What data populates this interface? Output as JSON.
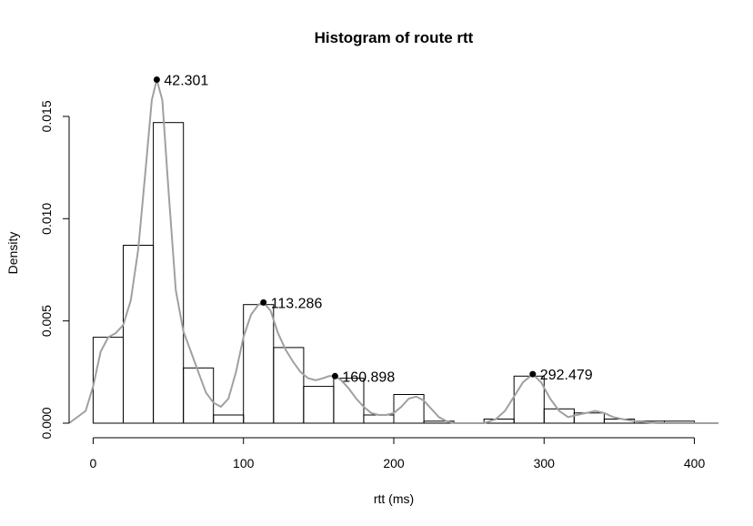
{
  "chart_data": {
    "type": "histogram",
    "title": "Histogram of route  rtt",
    "xlabel": "rtt  (ms)",
    "ylabel": "Density",
    "xlim": [
      -16,
      416
    ],
    "ylim": [
      0,
      0.017
    ],
    "x_ticks": [
      0,
      100,
      200,
      300,
      400
    ],
    "x_tick_labels": [
      "0",
      "100",
      "200",
      "300",
      "400"
    ],
    "y_ticks": [
      0,
      0.005,
      0.01,
      0.015
    ],
    "y_tick_labels": [
      "0.000",
      "0.005",
      "0.010",
      "0.015"
    ],
    "bin_width": 20,
    "bins": [
      {
        "start": 0,
        "end": 20,
        "density": 0.0042
      },
      {
        "start": 20,
        "end": 40,
        "density": 0.0087
      },
      {
        "start": 40,
        "end": 60,
        "density": 0.0147
      },
      {
        "start": 60,
        "end": 80,
        "density": 0.0027
      },
      {
        "start": 80,
        "end": 100,
        "density": 0.0004
      },
      {
        "start": 100,
        "end": 120,
        "density": 0.0058
      },
      {
        "start": 120,
        "end": 140,
        "density": 0.0037
      },
      {
        "start": 140,
        "end": 160,
        "density": 0.0018
      },
      {
        "start": 160,
        "end": 180,
        "density": 0.0022
      },
      {
        "start": 180,
        "end": 200,
        "density": 0.0004
      },
      {
        "start": 200,
        "end": 220,
        "density": 0.0014
      },
      {
        "start": 220,
        "end": 240,
        "density": 0.0001
      },
      {
        "start": 240,
        "end": 260,
        "density": 0.0
      },
      {
        "start": 260,
        "end": 280,
        "density": 0.0002
      },
      {
        "start": 280,
        "end": 300,
        "density": 0.0023
      },
      {
        "start": 300,
        "end": 320,
        "density": 0.0007
      },
      {
        "start": 320,
        "end": 340,
        "density": 0.0005
      },
      {
        "start": 340,
        "end": 360,
        "density": 0.0002
      },
      {
        "start": 360,
        "end": 380,
        "density": 0.0001
      },
      {
        "start": 380,
        "end": 400,
        "density": 0.0001
      }
    ],
    "density_curve": {
      "color": "#a0a0a0",
      "points": [
        [
          -16,
          0.0
        ],
        [
          -5,
          0.0006
        ],
        [
          0,
          0.0018
        ],
        [
          5,
          0.0035
        ],
        [
          10,
          0.0042
        ],
        [
          15,
          0.0044
        ],
        [
          20,
          0.0048
        ],
        [
          25,
          0.006
        ],
        [
          30,
          0.0085
        ],
        [
          35,
          0.0125
        ],
        [
          39,
          0.0158
        ],
        [
          42.301,
          0.0168
        ],
        [
          46,
          0.0158
        ],
        [
          50,
          0.0115
        ],
        [
          55,
          0.0065
        ],
        [
          60,
          0.0045
        ],
        [
          65,
          0.0035
        ],
        [
          70,
          0.0025
        ],
        [
          75,
          0.0015
        ],
        [
          80,
          0.001
        ],
        [
          85,
          0.0008
        ],
        [
          90,
          0.0012
        ],
        [
          95,
          0.0025
        ],
        [
          100,
          0.0042
        ],
        [
          105,
          0.0053
        ],
        [
          110,
          0.0058
        ],
        [
          113.286,
          0.0059
        ],
        [
          118,
          0.0055
        ],
        [
          123,
          0.0044
        ],
        [
          128,
          0.0036
        ],
        [
          133,
          0.003
        ],
        [
          138,
          0.0025
        ],
        [
          143,
          0.0022
        ],
        [
          148,
          0.0021
        ],
        [
          153,
          0.0022
        ],
        [
          157,
          0.0023
        ],
        [
          160.898,
          0.0023
        ],
        [
          165,
          0.0021
        ],
        [
          170,
          0.0017
        ],
        [
          175,
          0.0012
        ],
        [
          180,
          0.0008
        ],
        [
          185,
          0.0005
        ],
        [
          190,
          0.0004
        ],
        [
          195,
          0.0004
        ],
        [
          200,
          0.0005
        ],
        [
          205,
          0.0008
        ],
        [
          210,
          0.0012
        ],
        [
          215,
          0.0013
        ],
        [
          220,
          0.0011
        ],
        [
          225,
          0.0007
        ],
        [
          230,
          0.0003
        ],
        [
          235,
          0.0001
        ],
        [
          240,
          0.0
        ],
        [
          250,
          0.0
        ],
        [
          260,
          0.0
        ],
        [
          268,
          0.0002
        ],
        [
          274,
          0.0006
        ],
        [
          280,
          0.0013
        ],
        [
          286,
          0.002
        ],
        [
          292.479,
          0.0024
        ],
        [
          298,
          0.002
        ],
        [
          304,
          0.0012
        ],
        [
          310,
          0.0006
        ],
        [
          316,
          0.0003
        ],
        [
          322,
          0.0004
        ],
        [
          328,
          0.0005
        ],
        [
          334,
          0.0006
        ],
        [
          340,
          0.0005
        ],
        [
          346,
          0.0003
        ],
        [
          352,
          0.0002
        ],
        [
          360,
          0.0001
        ],
        [
          375,
          0.0
        ],
        [
          400,
          0.0
        ],
        [
          416,
          0.0
        ]
      ]
    },
    "peaks": [
      {
        "x": 42.301,
        "y": 0.0168,
        "label": "42.301"
      },
      {
        "x": 113.286,
        "y": 0.0059,
        "label": "113.286"
      },
      {
        "x": 160.898,
        "y": 0.0023,
        "label": "160.898"
      },
      {
        "x": 292.479,
        "y": 0.0024,
        "label": "292.479"
      }
    ]
  }
}
